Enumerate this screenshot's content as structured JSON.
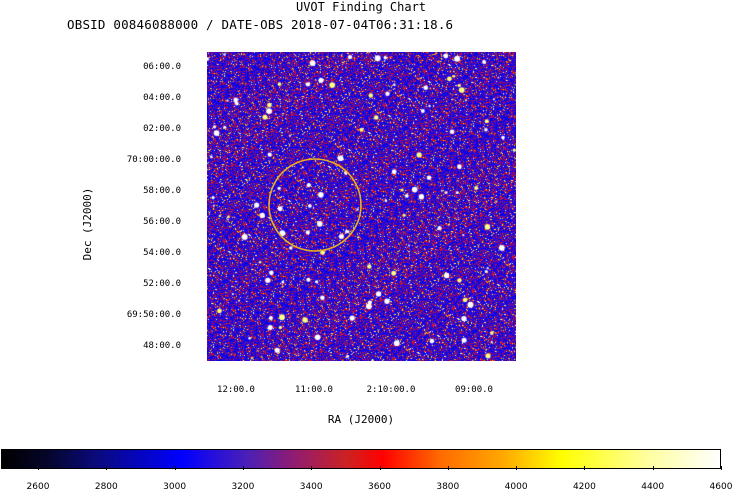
{
  "title": "UVOT Finding Chart",
  "subtitle": "OBSID 00846088000 / DATE-OBS 2018-07-04T06:31:18.6",
  "axes": {
    "y_label": "Dec (J2000)",
    "x_label": "RA (J2000)",
    "dec_ticks": [
      "06:00.0",
      "04:00.0",
      "02:00.0",
      "70:00:00.0",
      "58:00.0",
      "56:00.0",
      "54:00.0",
      "52:00.0",
      "69:50:00.0",
      "48:00.0"
    ],
    "ra_ticks": [
      "12:00.0",
      "11:00.0",
      "2:10:00.0",
      "09:00.0"
    ]
  },
  "colorbar": {
    "ticks": [
      "2600",
      "2800",
      "3000",
      "3200",
      "3400",
      "3600",
      "3800",
      "4000",
      "4200",
      "4400",
      "4600"
    ]
  },
  "region_color": "#e8b020"
}
